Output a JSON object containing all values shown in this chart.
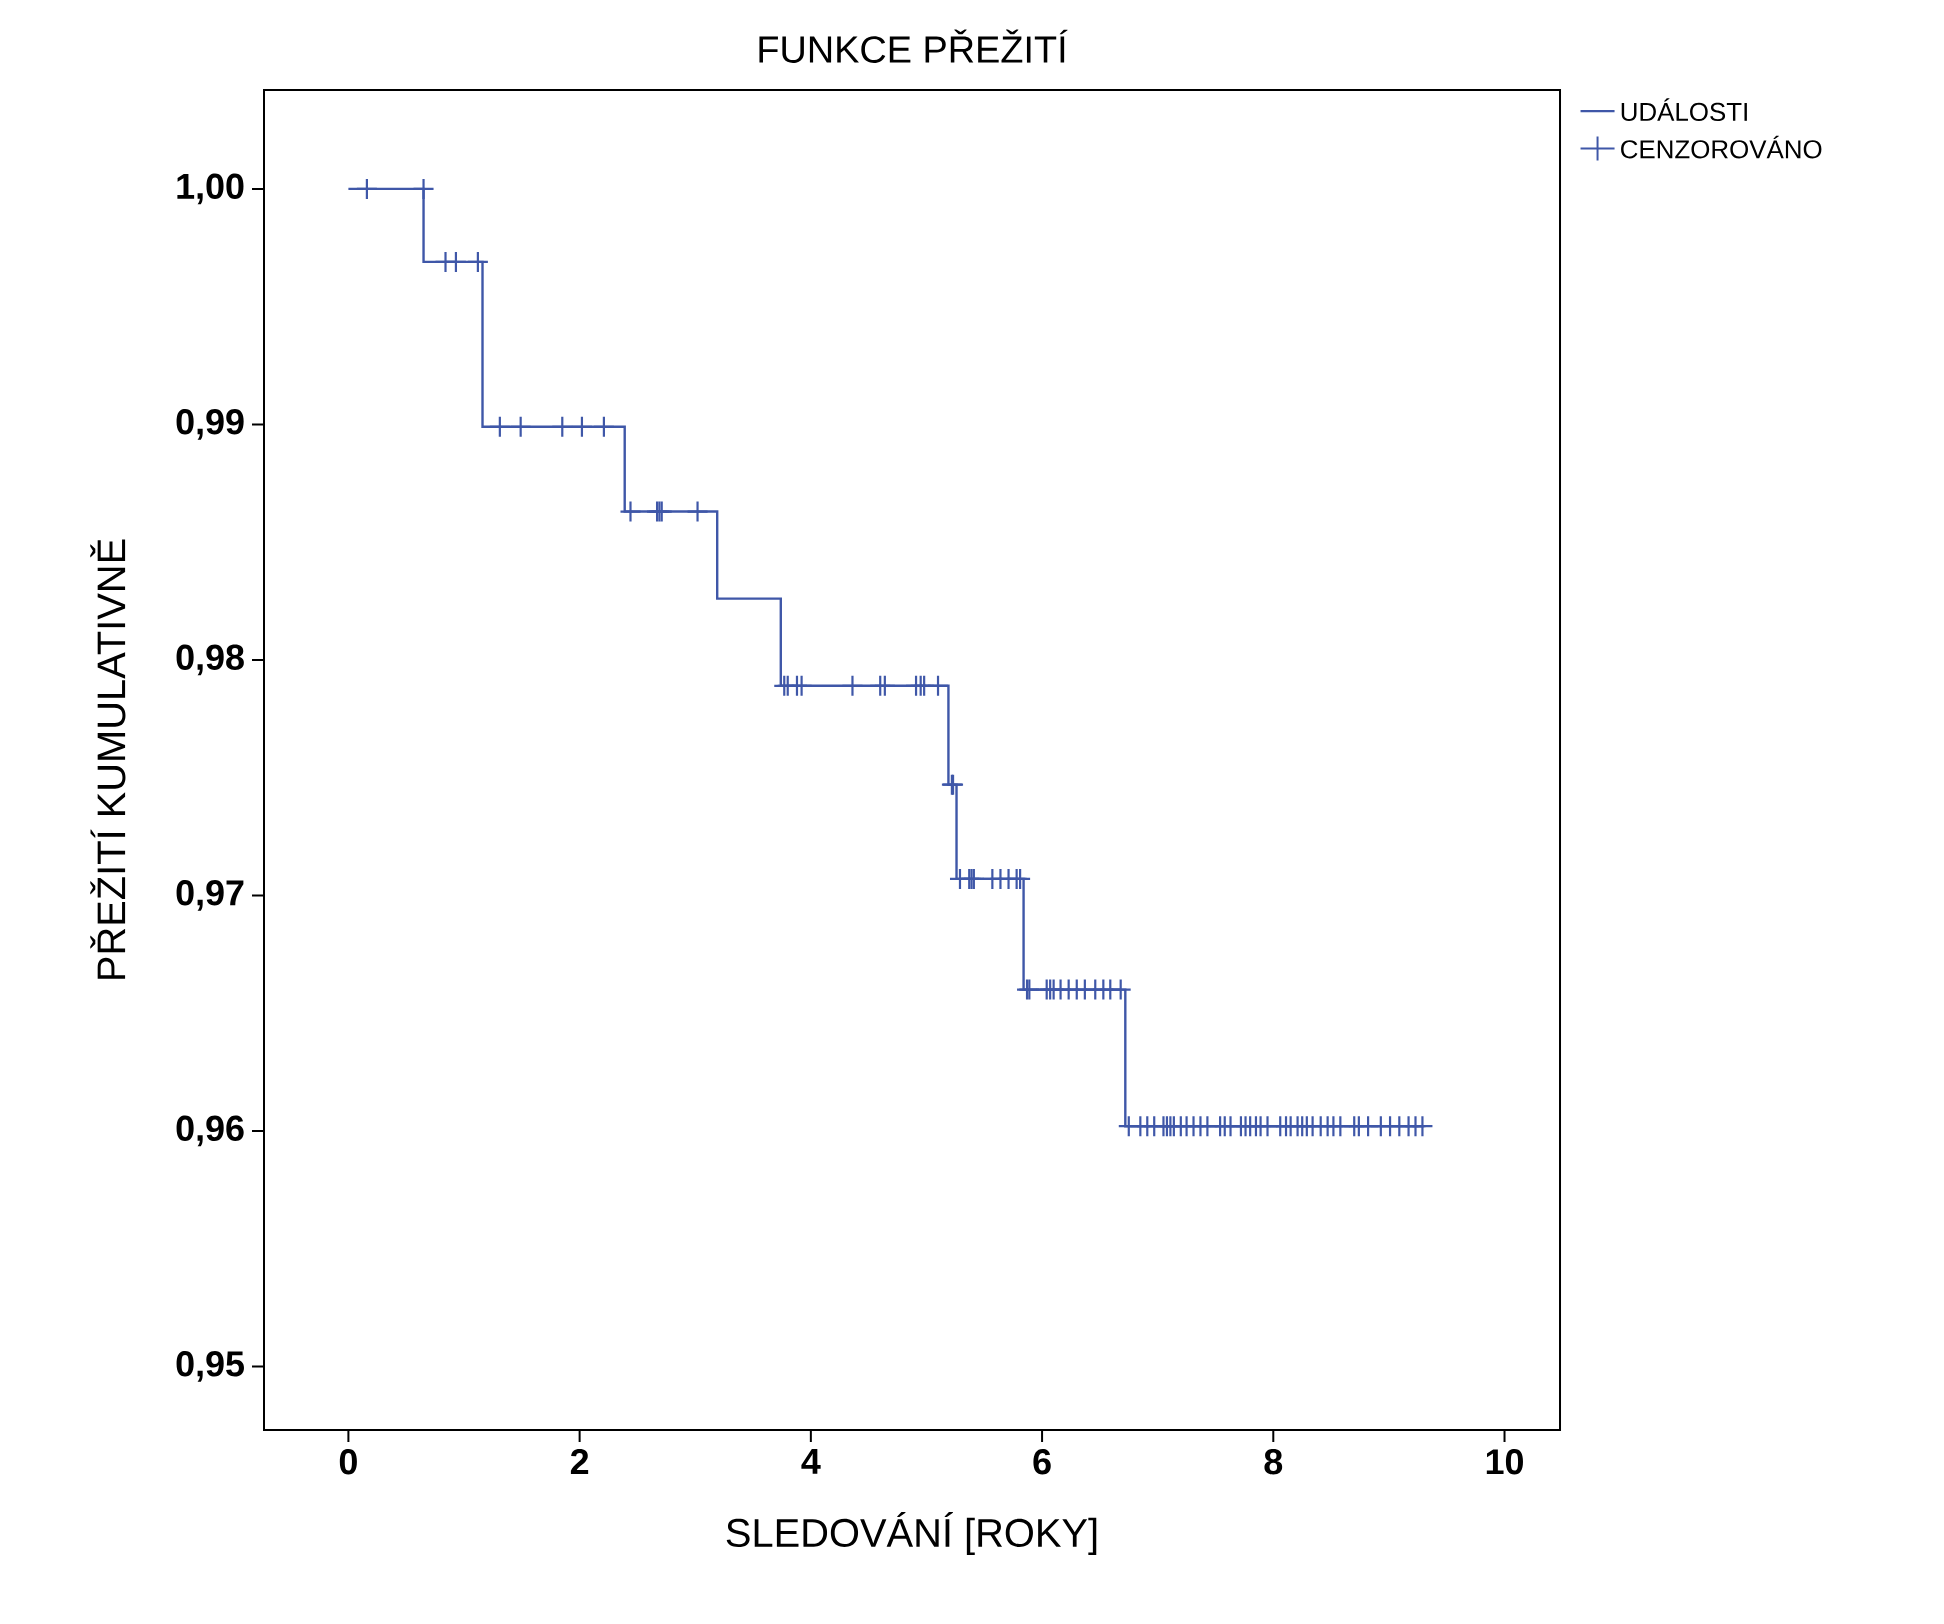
{
  "chart_data": {
    "type": "step",
    "title": "FUNKCE PŘEŽITÍ",
    "xlabel": "SLEDOVÁNÍ [ROKY]",
    "ylabel": "PŘEŽITÍ KUMULATIVNĚ",
    "xlim": [
      -0.73,
      10.48
    ],
    "ylim": [
      0.9473,
      1.0042
    ],
    "xticks": [
      0,
      2,
      4,
      6,
      8,
      10
    ],
    "yticks": [
      {
        "value": 0.95,
        "label": "0,95"
      },
      {
        "value": 0.96,
        "label": "0,96"
      },
      {
        "value": 0.97,
        "label": "0,97"
      },
      {
        "value": 0.98,
        "label": "0,98"
      },
      {
        "value": 0.99,
        "label": "0,99"
      },
      {
        "value": 1.0,
        "label": "1,00"
      }
    ],
    "grid": false,
    "legend": "top right",
    "series": [
      {
        "name": "UDÁLOSTI",
        "color": "#3f57a8",
        "x": [
          0,
          0.65,
          1.16,
          2.39,
          3.19,
          3.74,
          5.19,
          5.26,
          5.84,
          6.72,
          9.3
        ],
        "values": [
          1.0,
          0.9969,
          0.9899,
          0.9863,
          0.9826,
          0.9789,
          0.9747,
          0.9707,
          0.966,
          0.9602,
          0.9602
        ]
      },
      {
        "name": "CENZOROVÁNO",
        "type": "scatter",
        "marker": "cross",
        "color": "#3f57a8",
        "x": [
          0.16,
          0.65,
          0.84,
          0.93,
          1.12,
          1.31,
          1.49,
          1.85,
          2.02,
          2.21,
          2.44,
          2.67,
          2.69,
          2.71,
          3.02,
          3.77,
          3.8,
          3.88,
          3.92,
          4.36,
          4.6,
          4.64,
          4.91,
          4.95,
          4.98,
          5.1,
          5.22,
          5.23,
          5.29,
          5.37,
          5.39,
          5.41,
          5.57,
          5.64,
          5.71,
          5.78,
          5.81,
          5.87,
          5.89,
          6.04,
          6.07,
          6.1,
          6.16,
          6.23,
          6.3,
          6.37,
          6.46,
          6.53,
          6.59,
          6.68,
          6.75,
          6.85,
          6.91,
          6.97,
          7.05,
          7.08,
          7.11,
          7.14,
          7.2,
          7.25,
          7.31,
          7.37,
          7.43,
          7.54,
          7.58,
          7.63,
          7.72,
          7.76,
          7.8,
          7.85,
          7.89,
          7.95,
          8.06,
          8.11,
          8.15,
          8.21,
          8.25,
          8.29,
          8.34,
          8.41,
          8.47,
          8.52,
          8.58,
          8.7,
          8.74,
          8.82,
          8.93,
          9.01,
          9.09,
          9.17,
          9.23,
          9.29
        ],
        "values": [
          1.0,
          1.0,
          0.9969,
          0.9969,
          0.9969,
          0.9899,
          0.9899,
          0.9899,
          0.9899,
          0.9899,
          0.9863,
          0.9863,
          0.9863,
          0.9863,
          0.9863,
          0.9789,
          0.9789,
          0.9789,
          0.9789,
          0.9789,
          0.9789,
          0.9789,
          0.9789,
          0.9789,
          0.9789,
          0.9789,
          0.9747,
          0.9747,
          0.9707,
          0.9707,
          0.9707,
          0.9707,
          0.9707,
          0.9707,
          0.9707,
          0.9707,
          0.9707,
          0.966,
          0.966,
          0.966,
          0.966,
          0.966,
          0.966,
          0.966,
          0.966,
          0.966,
          0.966,
          0.966,
          0.966,
          0.966,
          0.9602,
          0.9602,
          0.9602,
          0.9602,
          0.9602,
          0.9602,
          0.9602,
          0.9602,
          0.9602,
          0.9602,
          0.9602,
          0.9602,
          0.9602,
          0.9602,
          0.9602,
          0.9602,
          0.9602,
          0.9602,
          0.9602,
          0.9602,
          0.9602,
          0.9602,
          0.9602,
          0.9602,
          0.9602,
          0.9602,
          0.9602,
          0.9602,
          0.9602,
          0.9602,
          0.9602,
          0.9602,
          0.9602,
          0.9602,
          0.9602,
          0.9602,
          0.9602,
          0.9602,
          0.9602,
          0.9602,
          0.9602,
          0.9602
        ]
      }
    ]
  }
}
